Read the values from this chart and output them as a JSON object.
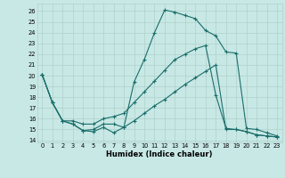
{
  "xlabel": "Humidex (Indice chaleur)",
  "background_color": "#c8e8e5",
  "grid_color": "#b0d0cc",
  "line_color": "#1a6e6a",
  "xlim": [
    -0.5,
    23.5
  ],
  "ylim": [
    13.8,
    26.7
  ],
  "yticks": [
    14,
    15,
    16,
    17,
    18,
    19,
    20,
    21,
    22,
    23,
    24,
    25,
    26
  ],
  "xticks": [
    0,
    1,
    2,
    3,
    4,
    5,
    6,
    7,
    8,
    9,
    10,
    11,
    12,
    13,
    14,
    15,
    16,
    17,
    18,
    19,
    20,
    21,
    22,
    23
  ],
  "line1_x": [
    0,
    1,
    2,
    3,
    4,
    5,
    6,
    7,
    8,
    9,
    10,
    11,
    12,
    13,
    14,
    15,
    16,
    17,
    18,
    19,
    20,
    21,
    22,
    23
  ],
  "line1_y": [
    20.1,
    17.5,
    15.8,
    15.5,
    14.9,
    14.8,
    15.2,
    14.7,
    15.2,
    19.4,
    21.5,
    24.0,
    26.1,
    25.9,
    25.6,
    25.3,
    24.2,
    23.7,
    22.2,
    22.1,
    15.1,
    15.0,
    14.7,
    14.4
  ],
  "line2_x": [
    0,
    1,
    2,
    3,
    4,
    5,
    6,
    7,
    8,
    9,
    10,
    11,
    12,
    13,
    14,
    15,
    16,
    17,
    18,
    19,
    20,
    21,
    22,
    23
  ],
  "line2_y": [
    20.1,
    17.5,
    15.8,
    15.8,
    15.5,
    15.5,
    16.0,
    16.2,
    16.5,
    17.5,
    18.5,
    19.5,
    20.5,
    21.5,
    22.0,
    22.5,
    22.8,
    18.2,
    15.1,
    15.0,
    14.8,
    14.5,
    14.4,
    14.3
  ],
  "line3_x": [
    0,
    1,
    2,
    3,
    4,
    5,
    6,
    7,
    8,
    9,
    10,
    11,
    12,
    13,
    14,
    15,
    16,
    17,
    18,
    19,
    20,
    21,
    22,
    23
  ],
  "line3_y": [
    20.1,
    17.5,
    15.8,
    15.5,
    14.9,
    15.0,
    15.5,
    15.5,
    15.2,
    15.8,
    16.5,
    17.2,
    17.8,
    18.5,
    19.2,
    19.8,
    20.4,
    21.0,
    15.0,
    15.0,
    14.8,
    14.5,
    14.4,
    14.3
  ]
}
